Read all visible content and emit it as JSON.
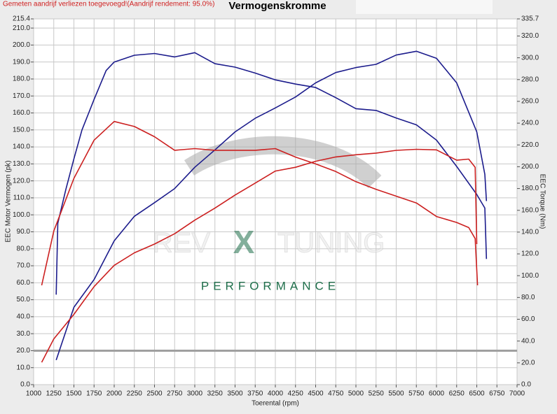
{
  "chart_data": {
    "type": "line",
    "note": "Gemeten aandrijf verliezen toegevoegd!(Aandrijf rendement: 95.0%)",
    "title": "Vermogenskromme",
    "xlabel": "Toerental (rpm)",
    "ylabel": "EEC Motor Vermogen (pk)",
    "y2label": "EEC Torque (Nm)",
    "logo": {
      "left": "REV",
      "mark": "X",
      "right": "TUNING",
      "tagline": "PERFORMANCE"
    },
    "xlim": [
      1000,
      7000
    ],
    "xticks": [
      1000,
      1250,
      1500,
      1750,
      2000,
      2250,
      2500,
      2750,
      3000,
      3250,
      3500,
      3750,
      4000,
      4250,
      4500,
      4750,
      5000,
      5250,
      5500,
      5750,
      6000,
      6250,
      6500,
      6750,
      7000
    ],
    "ylim": [
      0,
      215.4
    ],
    "yticks": [
      {
        "value": 0,
        "label": "0.0"
      },
      {
        "value": 10,
        "label": "10.0"
      },
      {
        "value": 20,
        "label": "20.0"
      },
      {
        "value": 30,
        "label": "30.0"
      },
      {
        "value": 40,
        "label": "40.0"
      },
      {
        "value": 50,
        "label": "50.0"
      },
      {
        "value": 60,
        "label": "60.0"
      },
      {
        "value": 70,
        "label": "70.0"
      },
      {
        "value": 80,
        "label": "80.0"
      },
      {
        "value": 90,
        "label": "90.0"
      },
      {
        "value": 100,
        "label": "100.0"
      },
      {
        "value": 110,
        "label": "110.0"
      },
      {
        "value": 120,
        "label": "120.0"
      },
      {
        "value": 130,
        "label": "130.0"
      },
      {
        "value": 140,
        "label": "140.0"
      },
      {
        "value": 150,
        "label": "150.0"
      },
      {
        "value": 160,
        "label": "160.0"
      },
      {
        "value": 170,
        "label": "170.0"
      },
      {
        "value": 180,
        "label": "180.0"
      },
      {
        "value": 190,
        "label": "190.0"
      },
      {
        "value": 200,
        "label": "200.0"
      },
      {
        "value": 210,
        "label": "210.0"
      },
      215.4
    ],
    "y2lim": [
      0,
      335.7
    ],
    "y2ticks": [
      {
        "value": 0,
        "label": "0.0"
      },
      {
        "value": 20,
        "label": "20.0"
      },
      {
        "value": 40,
        "label": "40.0"
      },
      {
        "value": 60,
        "label": "60.0"
      },
      {
        "value": 80,
        "label": "80.0"
      },
      {
        "value": 100,
        "label": "100.0"
      },
      {
        "value": 120,
        "label": "120.0"
      },
      {
        "value": 140,
        "label": "140.0"
      },
      {
        "value": 160,
        "label": "160.0"
      },
      {
        "value": 180,
        "label": "180.0"
      },
      {
        "value": 200,
        "label": "200.0"
      },
      {
        "value": 220,
        "label": "220.0"
      },
      {
        "value": 240,
        "label": "240.0"
      },
      {
        "value": 260,
        "label": "260.0"
      },
      {
        "value": 280,
        "label": "280.0"
      },
      {
        "value": 300,
        "label": "300.0"
      },
      {
        "value": 320,
        "label": "320.0"
      },
      335.7
    ],
    "grid": true,
    "hline": {
      "value": 20,
      "color": "#a0a0a0"
    },
    "series": [
      {
        "color": "#1c1c8c",
        "axis": "y",
        "x": [
          1280,
          1300,
          1400,
          1500,
          1600,
          1750,
          1900,
          2000,
          2250,
          2500,
          2750,
          3000,
          3250,
          3500,
          3750,
          4000,
          4250,
          4500,
          4750,
          5000,
          5250,
          5500,
          5750,
          6000,
          6250,
          6500,
          6600,
          6620
        ],
        "values": [
          53,
          95,
          115,
          133,
          150,
          168,
          185,
          190,
          194,
          195,
          193,
          195.5,
          189,
          187,
          183.5,
          179.5,
          177,
          175,
          169,
          162.5,
          161.5,
          157,
          153,
          144,
          128.5,
          112,
          104,
          74
        ]
      },
      {
        "color": "#1c1c8c",
        "axis": "y2",
        "x": [
          1280,
          1500,
          1750,
          2000,
          2250,
          2500,
          2750,
          3000,
          3250,
          3500,
          3750,
          4000,
          4250,
          4500,
          4750,
          5000,
          5250,
          5500,
          5750,
          6000,
          6250,
          6500,
          6600,
          6620
        ],
        "values": [
          22.5,
          71,
          96.5,
          132,
          154.5,
          167,
          180,
          199.5,
          215.5,
          232,
          244.5,
          254,
          264,
          277,
          286.5,
          291,
          294,
          302.5,
          306,
          299.5,
          277,
          232,
          193,
          168.5
        ]
      },
      {
        "color": "#cc2020",
        "axis": "y",
        "x": [
          1100,
          1250,
          1500,
          1750,
          2000,
          2250,
          2500,
          2750,
          3000,
          3250,
          3500,
          3750,
          4000,
          4250,
          4500,
          4750,
          5000,
          5250,
          5500,
          5750,
          6000,
          6250,
          6400,
          6480,
          6510
        ],
        "values": [
          58.5,
          90.5,
          121.5,
          144,
          155,
          152,
          146,
          138,
          139,
          138,
          138,
          138,
          139,
          134,
          130,
          125.5,
          119.5,
          115,
          111,
          107,
          99,
          95.5,
          92.5,
          86,
          58.5
        ]
      },
      {
        "color": "#cc2020",
        "axis": "y2",
        "x": [
          1100,
          1250,
          1500,
          1750,
          2000,
          2250,
          2500,
          2750,
          3000,
          3250,
          3500,
          3750,
          4000,
          4250,
          4500,
          4750,
          5000,
          5250,
          5500,
          5750,
          6000,
          6250,
          6400,
          6480,
          6500
        ],
        "values": [
          20.5,
          42,
          64.5,
          90,
          109.5,
          121,
          129,
          138.5,
          151,
          162,
          174,
          185,
          196,
          199.5,
          205,
          209,
          211,
          212.5,
          215,
          216,
          215.5,
          206,
          207,
          199.5,
          129
        ]
      }
    ]
  }
}
